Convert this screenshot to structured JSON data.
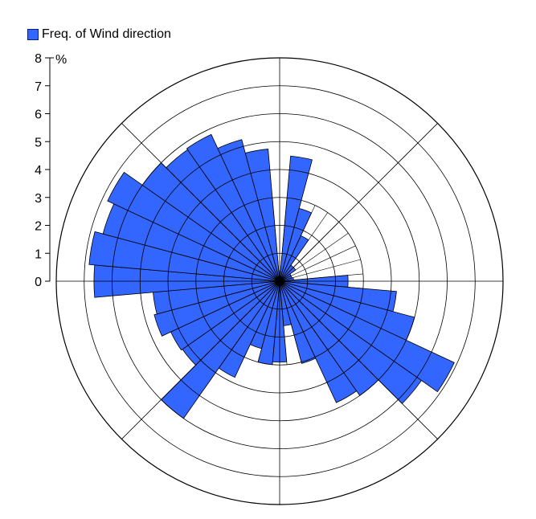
{
  "chart_data": {
    "type": "wind-rose",
    "legend": {
      "label": "Freq. of Wind direction",
      "color": "#3366ff",
      "placement": "top-left"
    },
    "unit": "%",
    "rlim": [
      0,
      8
    ],
    "r_ticks": [
      0,
      1,
      2,
      3,
      4,
      5,
      6,
      7,
      8
    ],
    "grid": true,
    "bar_color": "#3366ff",
    "bar_edge_color": "#000000",
    "directions_deg": [
      0,
      10,
      20,
      30,
      40,
      50,
      60,
      70,
      80,
      90,
      100,
      110,
      120,
      130,
      140,
      150,
      160,
      170,
      180,
      190,
      200,
      210,
      220,
      230,
      240,
      250,
      260,
      270,
      280,
      290,
      300,
      310,
      320,
      330,
      340,
      350
    ],
    "values": [
      0,
      4.5,
      2.7,
      1.8,
      0.7,
      0.7,
      0.45,
      0.45,
      0.5,
      2.45,
      4.2,
      5.0,
      6.9,
      6.2,
      5.0,
      4.8,
      3.05,
      1.6,
      2.9,
      3.0,
      2.5,
      3.8,
      6.0,
      4.25,
      4.3,
      4.65,
      4.55,
      6.65,
      6.85,
      6.55,
      6.8,
      6.0,
      5.75,
      5.8,
      5.25,
      4.75
    ]
  }
}
